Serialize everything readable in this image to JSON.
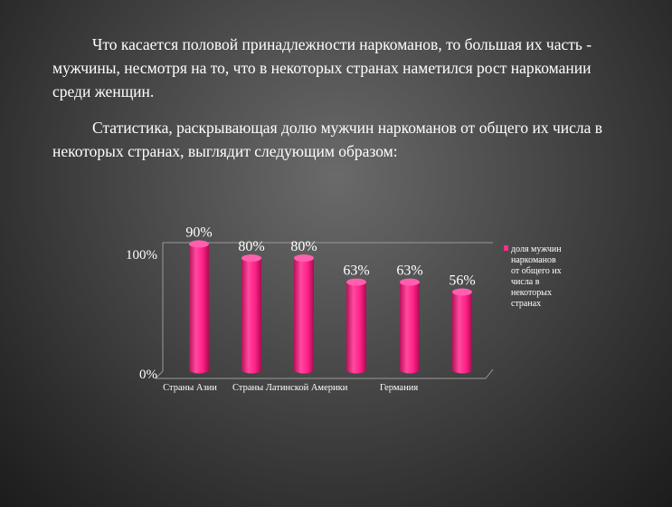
{
  "slide": {
    "paragraph1": "Что касается половой принадлежности наркоманов, то большая их часть - мужчины, несмотря на то, что в некоторых странах наметился рост наркомании среди женщин.",
    "paragraph2": "Статистика, раскрывающая долю мужчин наркоманов от общего их числа в некоторых странах, выглядит следующим образом:"
  },
  "chart_data": {
    "type": "bar",
    "values": [
      90,
      80,
      80,
      63,
      63,
      56
    ],
    "data_labels": [
      "90%",
      "80%",
      "80%",
      "63%",
      "63%",
      "56%"
    ],
    "category_labels": [
      "Страны Азии",
      "Страны Латинской Америки",
      "Германия"
    ],
    "ytick_labels": [
      "100%",
      "0%"
    ],
    "ylim": [
      0,
      100
    ],
    "series": [
      {
        "name": "доля мужчин наркоманов от общего их числа в некоторых странах",
        "values": [
          90,
          80,
          80,
          63,
          63,
          56
        ]
      }
    ],
    "legend_lines": [
      "доля мужчин",
      "наркоманов",
      "от общего их",
      "числа в",
      "некоторых",
      "странах"
    ],
    "legend_position": "right",
    "bar_color": "#ff2d8c"
  }
}
